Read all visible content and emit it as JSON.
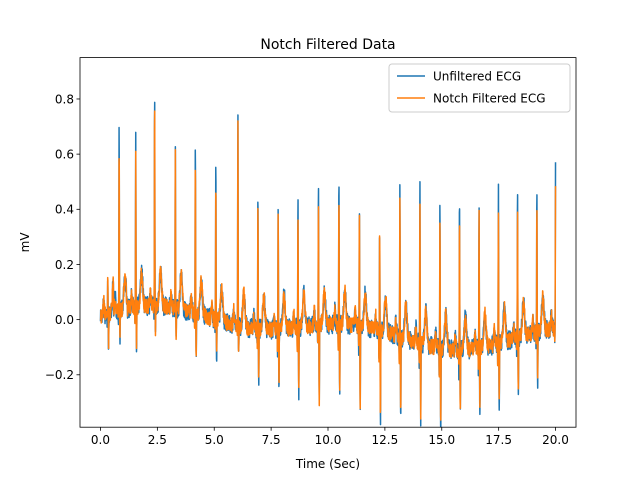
{
  "chart_data": {
    "type": "line",
    "title": "Notch Filtered Data",
    "xlabel": "Time (Sec)",
    "ylabel": "mV",
    "xlim": [
      -0.9,
      20.9
    ],
    "ylim": [
      -0.39,
      0.95
    ],
    "xticks": [
      0.0,
      2.5,
      5.0,
      7.5,
      10.0,
      12.5,
      15.0,
      17.5,
      20.0
    ],
    "xtick_labels": [
      "0.0",
      "2.5",
      "5.0",
      "7.5",
      "10.0",
      "12.5",
      "15.0",
      "17.5",
      "20.0"
    ],
    "yticks": [
      -0.2,
      0.0,
      0.2,
      0.4,
      0.6,
      0.8
    ],
    "ytick_labels": [
      "−0.2",
      "0.0",
      "0.2",
      "0.4",
      "0.6",
      "0.8"
    ],
    "grid": false,
    "legend_position": "top-right",
    "series": [
      {
        "name": "Unfiltered ECG",
        "color": "#1f77b4",
        "beats": [
          {
            "t": 0.32,
            "peak": 0.2,
            "trough": -0.1
          },
          {
            "t": 0.82,
            "peak": 0.74,
            "trough": -0.08
          },
          {
            "t": 1.55,
            "peak": 0.69,
            "trough": -0.12
          },
          {
            "t": 2.38,
            "peak": 0.89,
            "trough": -0.08
          },
          {
            "t": 3.29,
            "peak": 0.67,
            "trough": -0.1
          },
          {
            "t": 4.17,
            "peak": 0.68,
            "trough": -0.13
          },
          {
            "t": 5.07,
            "peak": 0.64,
            "trough": -0.11
          },
          {
            "t": 6.04,
            "peak": 0.86,
            "trough": -0.1
          },
          {
            "t": 6.92,
            "peak": 0.56,
            "trough": -0.18
          },
          {
            "t": 7.81,
            "peak": 0.5,
            "trough": -0.22
          },
          {
            "t": 8.68,
            "peak": 0.52,
            "trough": -0.24
          },
          {
            "t": 9.58,
            "peak": 0.59,
            "trough": -0.27
          },
          {
            "t": 10.48,
            "peak": 0.6,
            "trough": -0.25
          },
          {
            "t": 11.38,
            "peak": 0.52,
            "trough": -0.3
          },
          {
            "t": 12.27,
            "peak": 0.44,
            "trough": -0.33
          },
          {
            "t": 13.16,
            "peak": 0.61,
            "trough": -0.27
          },
          {
            "t": 14.04,
            "peak": 0.63,
            "trough": -0.26
          },
          {
            "t": 14.92,
            "peak": 0.58,
            "trough": -0.3
          },
          {
            "t": 15.78,
            "peak": 0.63,
            "trough": -0.23
          },
          {
            "t": 16.64,
            "peak": 0.6,
            "trough": -0.24
          },
          {
            "t": 17.49,
            "peak": 0.61,
            "trough": -0.22
          },
          {
            "t": 18.33,
            "peak": 0.59,
            "trough": -0.2
          },
          {
            "t": 19.18,
            "peak": 0.58,
            "trough": -0.16
          },
          {
            "t": 20.0,
            "peak": 0.62,
            "trough": -0.12
          }
        ]
      },
      {
        "name": "Notch Filtered ECG",
        "color": "#ff7f0e",
        "beats": [
          {
            "t": 0.32,
            "peak": 0.18,
            "trough": -0.09
          },
          {
            "t": 0.82,
            "peak": 0.67,
            "trough": -0.07
          },
          {
            "t": 1.55,
            "peak": 0.62,
            "trough": -0.11
          },
          {
            "t": 2.38,
            "peak": 0.81,
            "trough": -0.07
          },
          {
            "t": 3.29,
            "peak": 0.61,
            "trough": -0.09
          },
          {
            "t": 4.17,
            "peak": 0.62,
            "trough": -0.12
          },
          {
            "t": 5.07,
            "peak": 0.58,
            "trough": -0.1
          },
          {
            "t": 6.04,
            "peak": 0.79,
            "trough": -0.09
          },
          {
            "t": 6.92,
            "peak": 0.5,
            "trough": -0.17
          },
          {
            "t": 7.81,
            "peak": 0.45,
            "trough": -0.2
          },
          {
            "t": 8.68,
            "peak": 0.47,
            "trough": -0.22
          },
          {
            "t": 9.58,
            "peak": 0.53,
            "trough": -0.25
          },
          {
            "t": 10.48,
            "peak": 0.54,
            "trough": -0.23
          },
          {
            "t": 11.38,
            "peak": 0.47,
            "trough": -0.27
          },
          {
            "t": 12.27,
            "peak": 0.4,
            "trough": -0.3
          },
          {
            "t": 13.16,
            "peak": 0.56,
            "trough": -0.25
          },
          {
            "t": 14.04,
            "peak": 0.57,
            "trough": -0.24
          },
          {
            "t": 14.92,
            "peak": 0.53,
            "trough": -0.27
          },
          {
            "t": 15.78,
            "peak": 0.57,
            "trough": -0.21
          },
          {
            "t": 16.64,
            "peak": 0.55,
            "trough": -0.22
          },
          {
            "t": 17.49,
            "peak": 0.56,
            "trough": -0.2
          },
          {
            "t": 18.33,
            "peak": 0.54,
            "trough": -0.18
          },
          {
            "t": 19.18,
            "peak": 0.53,
            "trough": -0.15
          },
          {
            "t": 20.0,
            "peak": 0.56,
            "trough": -0.11
          }
        ]
      }
    ]
  }
}
